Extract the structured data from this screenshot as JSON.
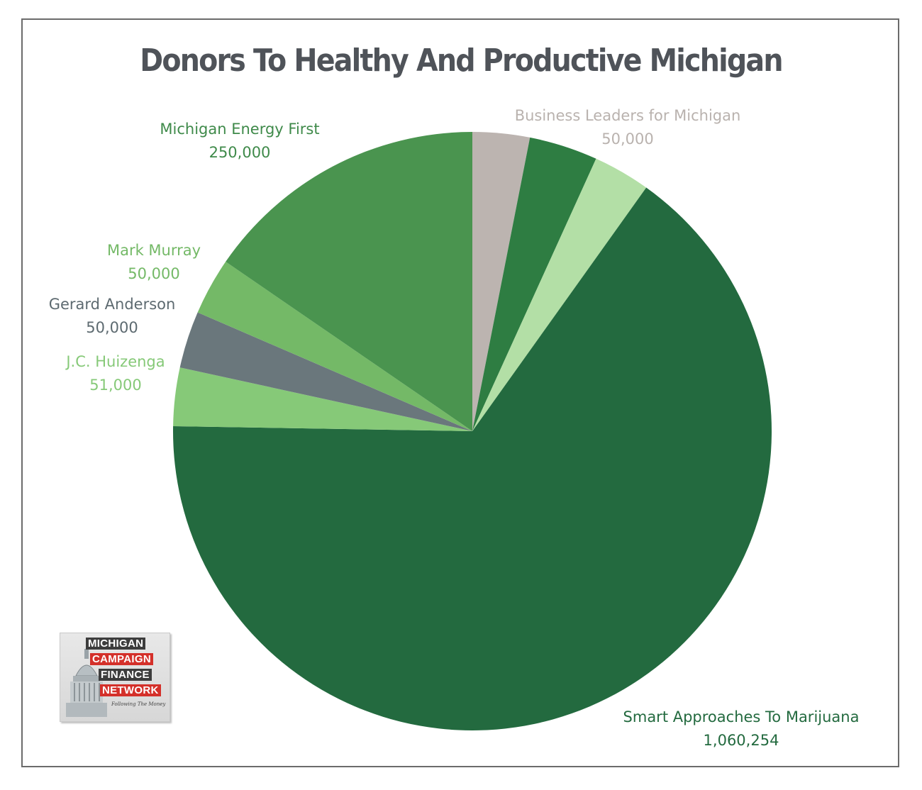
{
  "chart_data": {
    "type": "pie",
    "title": "Donors To Healthy And Productive Michigan",
    "slices": [
      {
        "label": "Business Leaders for Michigan",
        "display_value": "50,000",
        "value": 50000,
        "color": "#bcb4b0",
        "label_color": "#b9b2ae",
        "labeled": true
      },
      {
        "label": "",
        "display_value": "",
        "value": 60000,
        "color": "#2e7d42",
        "label_color": "#2e7d42",
        "labeled": false
      },
      {
        "label": "",
        "display_value": "",
        "value": 50000,
        "color": "#b3dfa6",
        "label_color": "#b3dfa6",
        "labeled": false
      },
      {
        "label": "Smart Approaches To Marijuana",
        "display_value": "1,060,254",
        "value": 1060254,
        "color": "#236a3f",
        "label_color": "#236a3f",
        "labeled": true
      },
      {
        "label": "J.C. Huizenga",
        "display_value": "51,000",
        "value": 51000,
        "color": "#86c978",
        "label_color": "#86c978",
        "labeled": true
      },
      {
        "label": "Gerard Anderson",
        "display_value": "50,000",
        "value": 50000,
        "color": "#6a777c",
        "label_color": "#5d6a70",
        "labeled": true
      },
      {
        "label": "Mark Murray",
        "display_value": "50,000",
        "value": 50000,
        "color": "#74b967",
        "label_color": "#74b967",
        "labeled": true
      },
      {
        "label": "Michigan Energy First",
        "display_value": "250,000",
        "value": 250000,
        "color": "#4a944f",
        "label_color": "#3f8a4a",
        "labeled": true
      }
    ]
  },
  "logo": {
    "line1": "MICHIGAN",
    "line2": "CAMPAIGN",
    "line3": "FINANCE",
    "line4": "NETWORK",
    "tagline": "Following The Money"
  }
}
